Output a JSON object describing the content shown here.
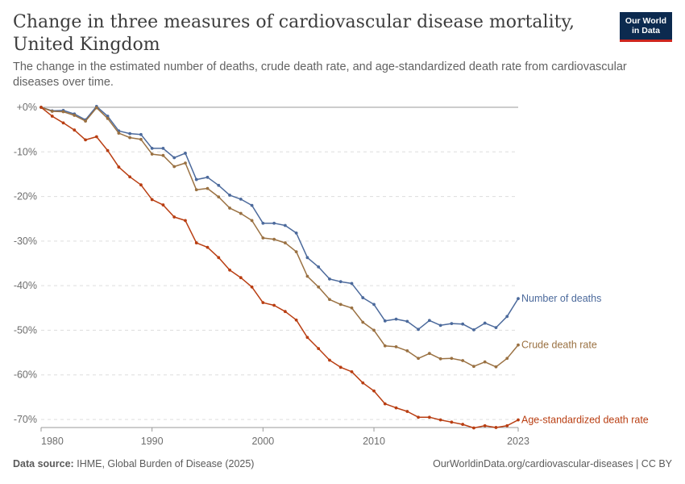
{
  "header": {
    "title": "Change in three measures of cardiovascular disease mortality, United Kingdom",
    "subtitle": "The change in the estimated number of deaths, crude death rate, and age-standardized death rate from cardiovascular diseases over time.",
    "logo_line1": "Our World",
    "logo_line2": "in Data"
  },
  "footer": {
    "source_label": "Data source:",
    "source_text": "IHME, Global Burden of Disease (2025)",
    "url_text": "OurWorldinData.org/cardiovascular-diseases | CC BY"
  },
  "colors": {
    "number_of_deaths": "#4c6a9c",
    "crude_death_rate": "#9a7142",
    "age_standardized": "#b93e12"
  },
  "chart_data": {
    "type": "line",
    "title": "Change in three measures of cardiovascular disease mortality, United Kingdom",
    "xlabel": "",
    "ylabel": "",
    "xlim": [
      1980,
      2023
    ],
    "ylim": [
      -70,
      0
    ],
    "x_ticks": [
      "1980",
      "1990",
      "2000",
      "2010",
      "2023"
    ],
    "x_tick_values": [
      1980,
      1990,
      2000,
      2010,
      2023
    ],
    "y_ticks": [
      "+0%",
      "-10%",
      "-20%",
      "-30%",
      "-40%",
      "-50%",
      "-60%",
      "-70%"
    ],
    "y_tick_values": [
      0,
      -10,
      -20,
      -30,
      -40,
      -50,
      -60,
      -70
    ],
    "grid": true,
    "legend": "right-end labels",
    "x": [
      1980,
      1981,
      1982,
      1983,
      1984,
      1985,
      1986,
      1987,
      1988,
      1989,
      1990,
      1991,
      1992,
      1993,
      1994,
      1995,
      1996,
      1997,
      1998,
      1999,
      2000,
      2001,
      2002,
      2003,
      2004,
      2005,
      2006,
      2007,
      2008,
      2009,
      2010,
      2011,
      2012,
      2013,
      2014,
      2015,
      2016,
      2017,
      2018,
      2019,
      2020,
      2021,
      2022,
      2023
    ],
    "series": [
      {
        "name": "Number of deaths",
        "values": [
          0,
          -0.8,
          -0.7,
          -1.5,
          -2.8,
          0.2,
          -2,
          -5.3,
          -5.9,
          -6.1,
          -9.2,
          -9.2,
          -11.3,
          -10.3,
          -16.2,
          -15.7,
          -17.5,
          -19.7,
          -20.6,
          -22,
          -26,
          -26,
          -26.5,
          -28.2,
          -33.7,
          -35.8,
          -38.5,
          -39.1,
          -39.5,
          -42.7,
          -44.2,
          -47.9,
          -47.5,
          -48,
          -49.8,
          -47.8,
          -48.9,
          -48.5,
          -48.6,
          -49.9,
          -48.4,
          -49.4,
          -46.9,
          -42.9
        ]
      },
      {
        "name": "Crude death rate",
        "values": [
          0,
          -0.9,
          -1,
          -1.8,
          -3.1,
          -0.1,
          -2.5,
          -5.8,
          -6.8,
          -7.2,
          -10.5,
          -10.8,
          -13.3,
          -12.5,
          -18.5,
          -18.2,
          -20.1,
          -22.6,
          -23.8,
          -25.4,
          -29.3,
          -29.6,
          -30.4,
          -32.4,
          -37.9,
          -40.3,
          -43.1,
          -44.2,
          -45,
          -48.2,
          -50,
          -53.5,
          -53.7,
          -54.6,
          -56.3,
          -55.2,
          -56.4,
          -56.3,
          -56.8,
          -58.1,
          -57.1,
          -58.2,
          -56.3,
          -53.3
        ]
      },
      {
        "name": "Age-standardized death rate",
        "values": [
          0,
          -2,
          -3.5,
          -5.1,
          -7.3,
          -6.6,
          -9.7,
          -13.4,
          -15.6,
          -17.4,
          -20.7,
          -21.9,
          -24.6,
          -25.4,
          -30.4,
          -31.4,
          -33.7,
          -36.5,
          -38.2,
          -40.3,
          -43.8,
          -44.4,
          -45.8,
          -47.7,
          -51.6,
          -54.1,
          -56.7,
          -58.3,
          -59.3,
          -61.8,
          -63.6,
          -66.5,
          -67.4,
          -68.2,
          -69.5,
          -69.5,
          -70.1,
          -70.6,
          -71.1,
          -71.9,
          -71.4,
          -71.8,
          -71.4,
          -70.1
        ]
      }
    ]
  }
}
